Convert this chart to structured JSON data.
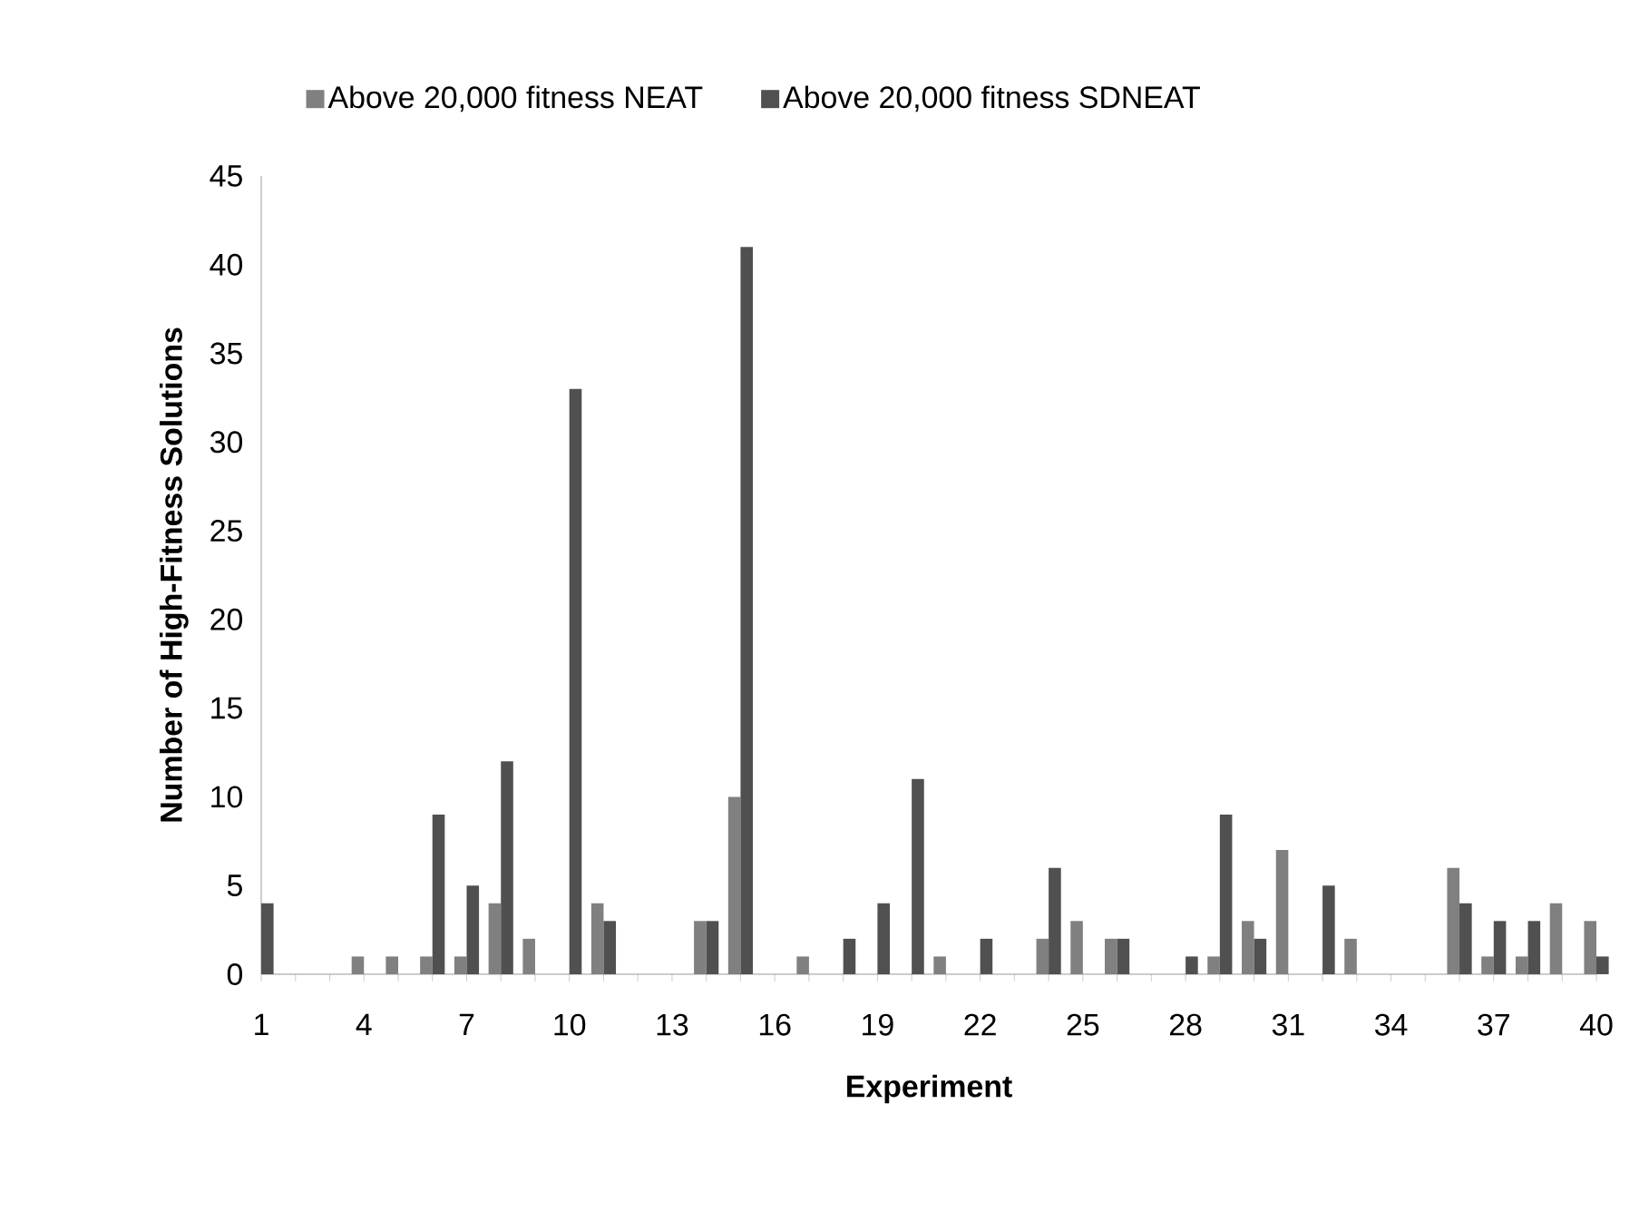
{
  "chart_data": {
    "type": "bar",
    "xlabel": "Experiment",
    "ylabel": "Number of High-Fitness Solutions",
    "categories": [
      "1",
      null,
      null,
      "4",
      null,
      null,
      "7",
      null,
      null,
      "10",
      null,
      null,
      "13",
      null,
      null,
      "16",
      null,
      null,
      "19",
      null,
      null,
      "22",
      null,
      null,
      "25",
      null,
      null,
      "28",
      null,
      null,
      "31",
      null,
      null,
      "34",
      null,
      null,
      "37",
      null,
      null,
      "40"
    ],
    "series": [
      {
        "name": "Above 20,000 fitness NEAT",
        "color": "#808080",
        "values": [
          null,
          0,
          0,
          1,
          1,
          1,
          1,
          4,
          2,
          0,
          4,
          0,
          0,
          3,
          10,
          0,
          1,
          0,
          0,
          0,
          1,
          0,
          0,
          2,
          3,
          2,
          0,
          0,
          1,
          3,
          7,
          0,
          2,
          0,
          0,
          6,
          1,
          1,
          4,
          3
        ]
      },
      {
        "name": "Above 20,000 fitness SDNEAT",
        "color": "#505050",
        "values": [
          4,
          0,
          0,
          0,
          0,
          9,
          5,
          12,
          0,
          33,
          3,
          0,
          0,
          3,
          41,
          0,
          0,
          2,
          4,
          11,
          0,
          2,
          0,
          6,
          0,
          2,
          0,
          1,
          9,
          2,
          0,
          5,
          0,
          0,
          0,
          4,
          3,
          3,
          0,
          1
        ]
      }
    ],
    "ylim": [
      0,
      45
    ],
    "yticks": [
      0,
      5,
      10,
      15,
      20,
      25,
      30,
      35,
      40,
      45
    ],
    "legend": "top"
  }
}
